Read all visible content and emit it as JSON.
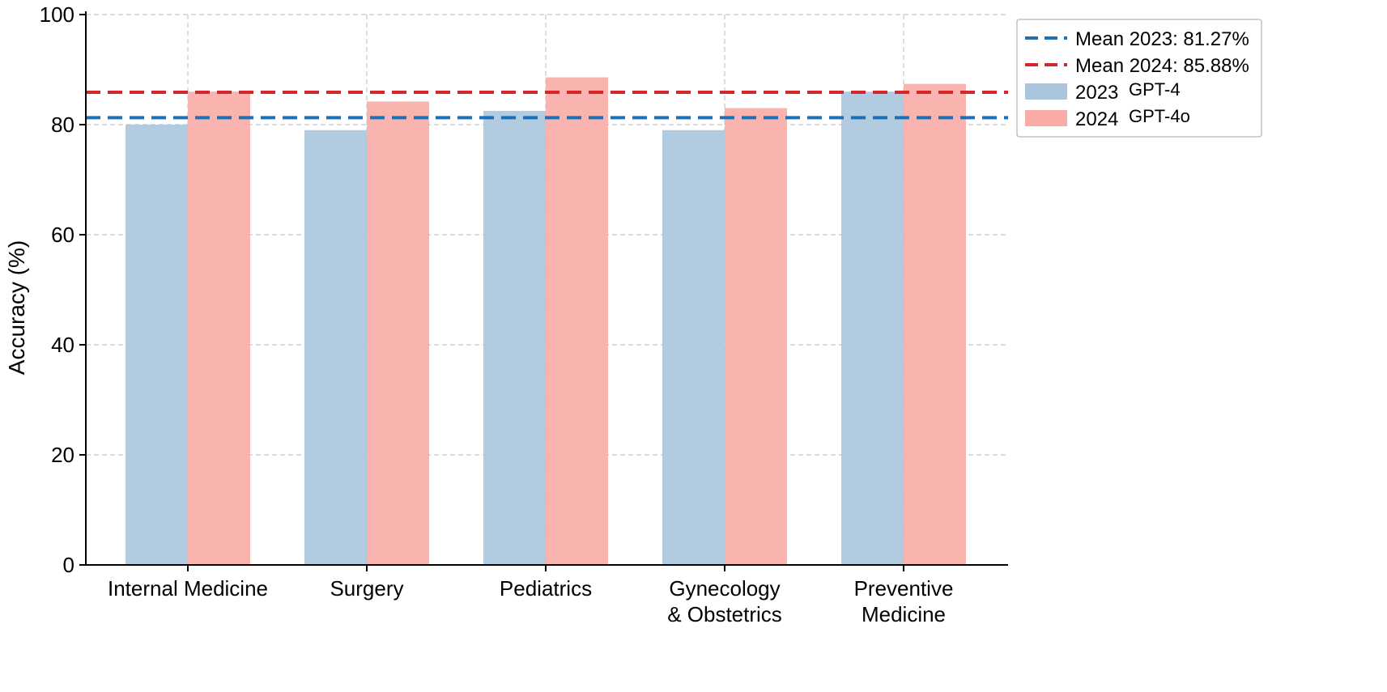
{
  "chart_data": {
    "type": "bar",
    "title": "",
    "xlabel": "",
    "ylabel": "Accuracy (%)",
    "ylim": [
      0,
      100
    ],
    "yticks": [
      0,
      20,
      40,
      60,
      80,
      100
    ],
    "grid": true,
    "categories": [
      [
        "Internal Medicine"
      ],
      [
        "Surgery"
      ],
      [
        "Pediatrics"
      ],
      [
        "Gynecology",
        "& Obstetrics"
      ],
      [
        "Preventive",
        "Medicine"
      ]
    ],
    "series": [
      {
        "name": "2023",
        "model": "GPT-4",
        "color": "#a9c5de",
        "values": [
          80.0,
          79.0,
          82.5,
          79.0,
          86.0
        ]
      },
      {
        "name": "2024",
        "model": "GPT-4o",
        "color": "#f9aca6",
        "values": [
          86.0,
          84.2,
          88.6,
          83.0,
          87.4
        ]
      }
    ],
    "reference_lines": [
      {
        "label": "Mean 2023: 81.27%",
        "value": 81.27,
        "color": "#1f6fb5",
        "style": "dashed"
      },
      {
        "label": "Mean 2024: 85.88%",
        "value": 85.88,
        "color": "#d6262b",
        "style": "dashed"
      }
    ],
    "legend_position": "top-right-outside"
  }
}
